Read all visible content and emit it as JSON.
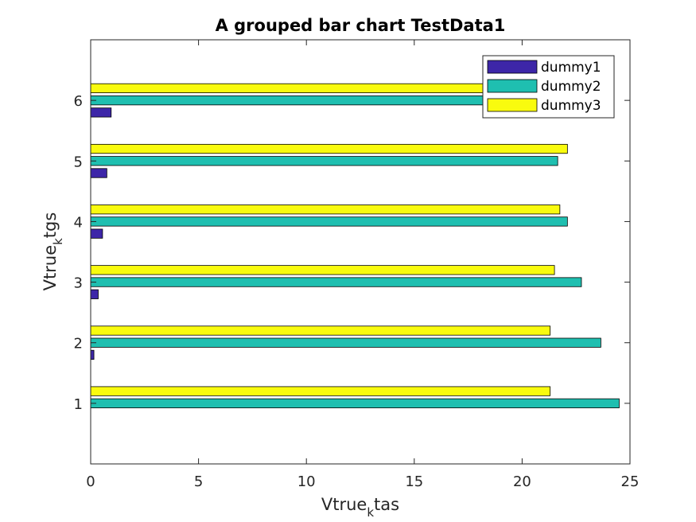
{
  "chart_data": {
    "type": "bar",
    "orientation": "horizontal",
    "title": "A grouped bar chart TestData1",
    "xlabel": {
      "base": "Vtrue",
      "sub": "k",
      "rest": "tas"
    },
    "ylabel": {
      "base": "Vtrue",
      "sub": "k",
      "rest": "tgs"
    },
    "categories": [
      1,
      2,
      3,
      4,
      5,
      6
    ],
    "xlim": [
      0,
      25
    ],
    "ylim": [
      0,
      7
    ],
    "xticks": [
      0,
      5,
      10,
      15,
      20,
      25
    ],
    "yticks": [
      1,
      2,
      3,
      4,
      5,
      6
    ],
    "grid": false,
    "legend_position": "top-right",
    "series": [
      {
        "name": "dummy1",
        "color": "#3d26a8",
        "values": [
          0,
          0.15,
          0.35,
          0.55,
          0.75,
          0.95
        ]
      },
      {
        "name": "dummy2",
        "color": "#1fbfb0",
        "values": [
          24.5,
          23.65,
          22.75,
          22.1,
          21.65,
          23.5
        ]
      },
      {
        "name": "dummy3",
        "color": "#f9fb0e",
        "values": [
          21.3,
          21.3,
          21.5,
          21.75,
          22.1,
          22.2
        ]
      }
    ]
  }
}
